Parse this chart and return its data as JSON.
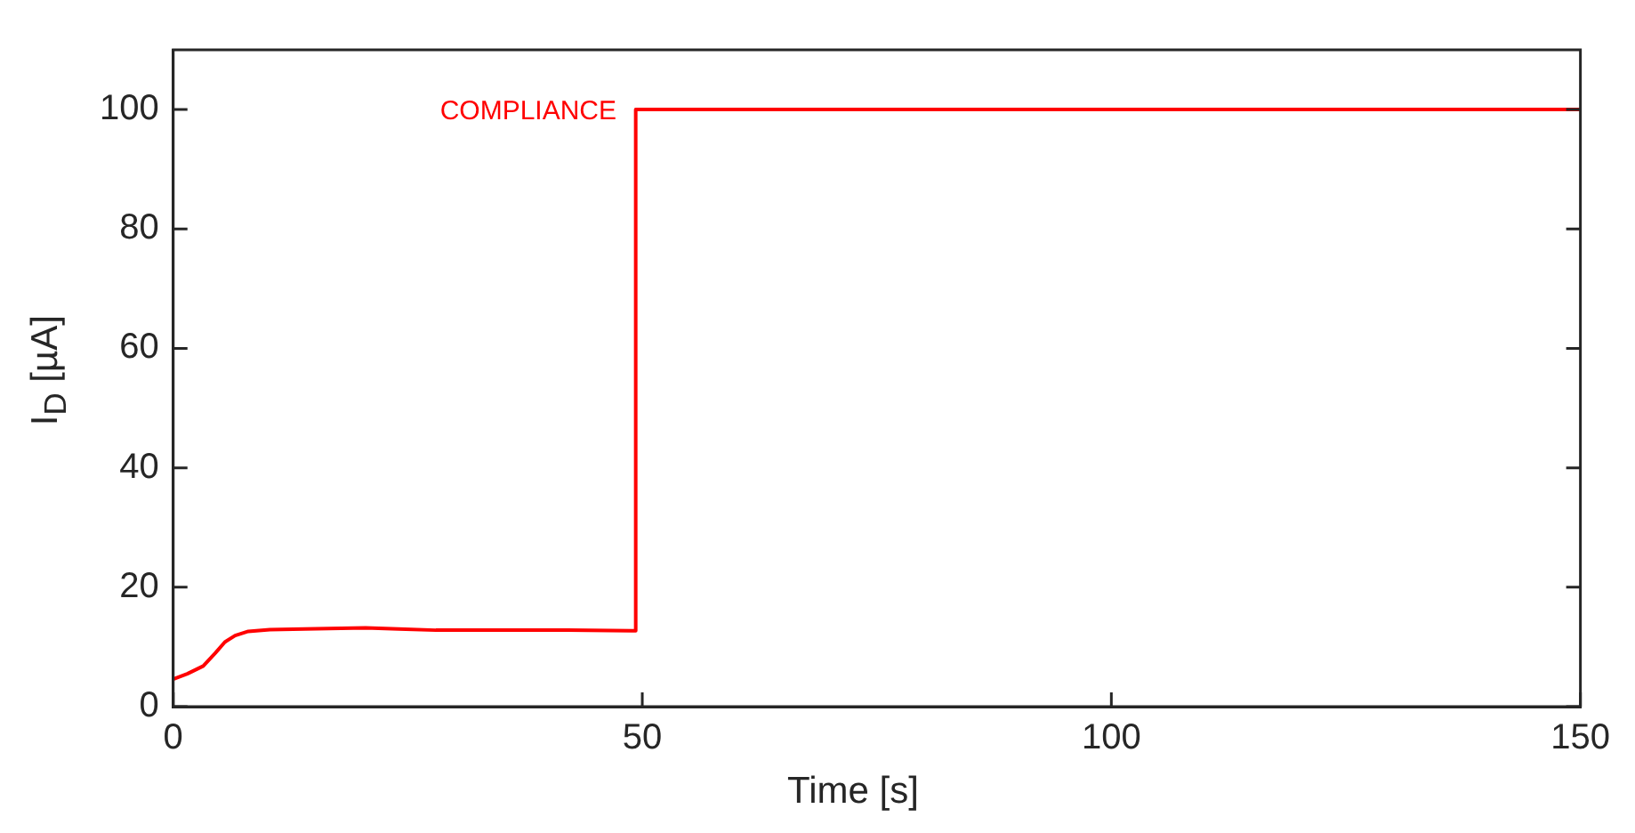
{
  "chart_data": {
    "type": "line",
    "xlabel": "Time [s]",
    "ylabel": "I$_{D}$ [µA]",
    "series": [
      {
        "color": "#ff0000",
        "x": [
          0,
          1.5,
          3.2,
          4.5,
          5.5,
          6.6,
          8,
          10.3,
          14,
          20.5,
          24,
          28,
          35,
          42,
          48.9,
          49.3,
          49.3,
          60,
          80,
          100,
          120,
          150
        ],
        "values": [
          4.6,
          5.5,
          6.8,
          9,
          10.8,
          11.9,
          12.6,
          12.9,
          13,
          13.2,
          13,
          12.8,
          12.8,
          12.8,
          12.7,
          12.7,
          100,
          100,
          100,
          100,
          100,
          100
        ]
      }
    ],
    "xlim": [
      0,
      150
    ],
    "xticks": [
      0,
      50,
      100,
      150
    ],
    "ylim": [
      0,
      110
    ],
    "yticks": [
      0,
      20,
      40,
      60,
      80,
      100
    ],
    "annotations": [
      "COMPLIANCE"
    ],
    "grid": false,
    "legend": false,
    "marker": "none",
    "line_style": "solid"
  }
}
